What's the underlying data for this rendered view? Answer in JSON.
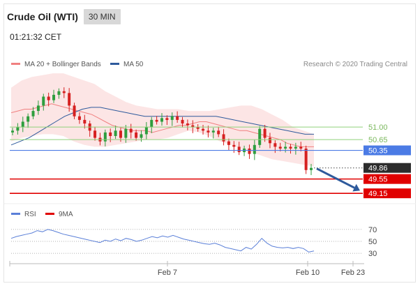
{
  "header": {
    "title": "Crude Oil (WTI)",
    "timeframe": "30 MIN",
    "time": "01:21:32 CET"
  },
  "legend": {
    "ma20_label": "MA 20 + Bollinger Bands",
    "ma50_label": "MA 50",
    "credit": "Research © 2020 Trading Central",
    "rsi_label": "RSI",
    "ma9_label": "9MA"
  },
  "colors": {
    "ma20": "#f08080",
    "ma50": "#2e5a9c",
    "bollinger_band": "#fce0e0",
    "up_candle": "#2e9e3e",
    "down_candle": "#d62020",
    "support": "#e00000",
    "pivot": "#4b7be5",
    "resistance": "#8fd07a",
    "arrow": "#2e5a9c",
    "rsi": "#5a7fd8"
  },
  "chart_data": [
    {
      "type": "candlestick",
      "y_range": [
        48.9,
        52.6
      ],
      "x_tick_labels": [
        "Feb 7",
        "Feb 10",
        "Feb 23"
      ],
      "levels": {
        "resistance": [
          51.0,
          50.65
        ],
        "pivot": 50.35,
        "support": [
          49.55,
          49.15
        ],
        "last_price": 49.86
      },
      "level_labels": [
        "51.00",
        "50.65",
        "50.35",
        "49.86",
        "49.55",
        "49.15"
      ],
      "forecast": {
        "from": 49.86,
        "to": 49.15,
        "direction": "down"
      },
      "closes": [
        50.9,
        51.0,
        51.15,
        51.3,
        51.45,
        51.6,
        51.85,
        51.75,
        51.9,
        52.0,
        51.95,
        51.6,
        51.3,
        51.2,
        51.1,
        50.9,
        50.7,
        50.6,
        50.85,
        50.75,
        50.9,
        50.7,
        50.95,
        50.85,
        50.7,
        50.8,
        51.0,
        51.2,
        51.15,
        51.25,
        51.2,
        51.3,
        51.2,
        51.1,
        51.05,
        51.0,
        50.95,
        50.9,
        50.85,
        50.9,
        50.8,
        50.6,
        50.5,
        50.45,
        50.3,
        50.4,
        50.25,
        50.5,
        50.95,
        50.7,
        50.55,
        50.45,
        50.4,
        50.45,
        50.4,
        50.45,
        50.4,
        49.8,
        49.86
      ],
      "ma20": [
        51.4,
        51.45,
        51.5,
        51.5,
        51.55,
        51.6,
        51.65,
        51.6,
        51.55,
        51.5,
        51.45,
        51.4,
        51.35,
        51.25,
        51.15,
        51.05,
        51.0,
        50.95,
        50.9,
        50.9,
        50.9,
        50.85,
        50.9,
        50.95,
        51.0,
        51.05,
        51.05,
        51.1,
        51.15,
        51.15,
        51.1,
        51.05,
        51.0,
        50.95,
        50.9,
        50.9,
        50.85,
        50.8,
        50.75,
        50.7,
        50.65,
        50.55,
        50.5,
        50.45,
        50.45,
        50.45
      ],
      "ma50": [
        50.5,
        50.6,
        50.7,
        50.85,
        51.0,
        51.15,
        51.3,
        51.4,
        51.5,
        51.55,
        51.55,
        51.5,
        51.45,
        51.4,
        51.35,
        51.3,
        51.3,
        51.3,
        51.3,
        51.3,
        51.3,
        51.3,
        51.3,
        51.3,
        51.25,
        51.2,
        51.15,
        51.1,
        51.05,
        51.0,
        50.95,
        50.9,
        50.85,
        50.8,
        50.8
      ],
      "band_upper": [
        52.1,
        52.3,
        52.4,
        52.45,
        52.5,
        52.5,
        52.4,
        52.3,
        52.2,
        52.0,
        51.85,
        51.7,
        51.6,
        51.55,
        51.5,
        51.5,
        51.5,
        51.45,
        51.45,
        51.45,
        51.5,
        51.55,
        51.6,
        51.6,
        51.5,
        51.35,
        51.2,
        51.0,
        50.9,
        50.8
      ],
      "band_lower": [
        50.6,
        50.7,
        50.75,
        50.8,
        50.8,
        50.75,
        50.6,
        50.5,
        50.45,
        50.45,
        50.5,
        50.55,
        50.6,
        50.65,
        50.65,
        50.7,
        50.8,
        50.9,
        50.85,
        50.75,
        50.6,
        50.5,
        50.4,
        50.3,
        50.2,
        50.1,
        50.05,
        50.0,
        49.95,
        49.9
      ]
    },
    {
      "type": "line",
      "name": "RSI",
      "y_range": [
        22,
        78
      ],
      "y_tick_labels": [
        "70",
        "50",
        "30"
      ],
      "y_ticks": [
        70,
        50,
        30
      ],
      "values": [
        55,
        58,
        60,
        62,
        64,
        68,
        66,
        70,
        68,
        65,
        62,
        60,
        58,
        56,
        54,
        52,
        50,
        48,
        52,
        50,
        54,
        51,
        55,
        53,
        50,
        52,
        55,
        58,
        56,
        59,
        57,
        60,
        57,
        54,
        52,
        50,
        48,
        46,
        45,
        47,
        44,
        40,
        38,
        36,
        34,
        40,
        37,
        45,
        55,
        47,
        42,
        40,
        39,
        40,
        38,
        40,
        38,
        32,
        34
      ]
    }
  ]
}
